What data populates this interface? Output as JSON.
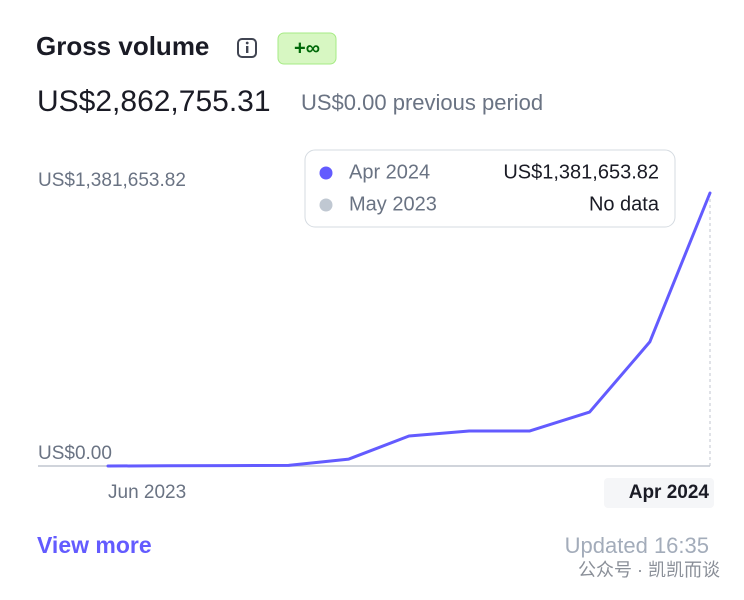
{
  "header": {
    "title": "Gross volume",
    "badge": "+∞",
    "total": "US$2,862,755.31",
    "previous": "US$0.00 previous period"
  },
  "tooltip": {
    "rows": [
      {
        "label": "Apr 2024",
        "value": "US$1,381,653.82"
      },
      {
        "label": "May 2023",
        "value": "No data"
      }
    ]
  },
  "chart_data": {
    "type": "line",
    "categories": [
      "Jun 2023",
      null,
      null,
      null,
      null,
      null,
      null,
      null,
      null,
      null,
      "Apr 2024"
    ],
    "series": [
      {
        "color": "#635bff",
        "values": [
          0,
          1000,
          2000,
          3000,
          35000,
          152000,
          177000,
          177000,
          273000,
          628000,
          1381653.82
        ]
      }
    ],
    "ylim": [
      0,
      1381653.82
    ],
    "yticks": [
      {
        "value": 0,
        "label": "US$0.00"
      },
      {
        "value": 1381653.82,
        "label": "US$1,381,653.82"
      }
    ]
  },
  "footer": {
    "link": "View more",
    "updated": "Updated 16:35",
    "watermark": "公众号 · 凯凯而谈"
  }
}
